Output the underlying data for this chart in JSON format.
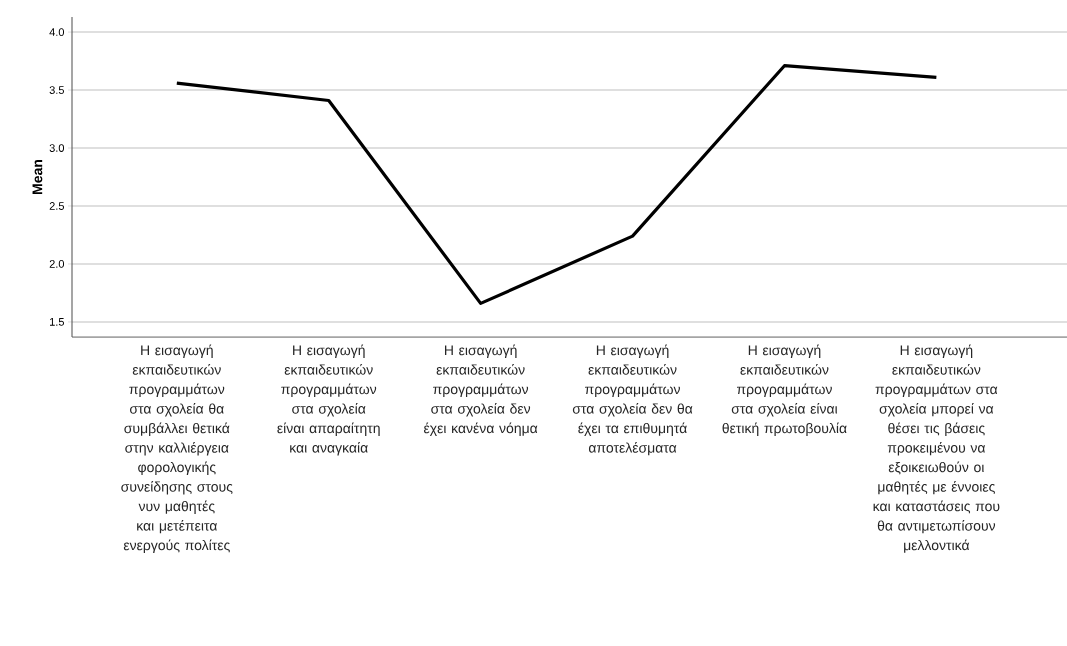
{
  "chart_data": {
    "type": "line",
    "ylabel": "Mean",
    "categories": [
      "Η εισαγωγή εκπαιδευτικών προγραμμάτων στα σχολεία θα συμβάλλει θετικά στην καλλιέργεια φορολογικής συνείδησης στους νυν μαθητές και μετέπειτα ενεργούς πολίτες",
      "Η εισαγωγή εκπαιδευτικών προγραμμάτων στα σχολεία είναι απαραίτητη και αναγκαία",
      "Η εισαγωγή εκπαιδευτικών προγραμμάτων στα σχολεία δεν έχει κανένα νόημα",
      "Η εισαγωγή εκπαιδευτικών προγραμμάτων στα σχολεία δεν θα έχει τα επιθυμητά αποτελέσματα",
      "Η εισαγωγή εκπαιδευτικών προγραμμάτων στα σχολεία είναι θετική πρωτοβουλία",
      "Η εισαγωγή εκπαιδευτικών προγραμμάτων στα σχολεία μπορεί να θέσει τις βάσεις προκειμένου να εξοικειωθούν οι μαθητές με έννοιες και καταστάσεις που θα αντιμετωπίσουν μελλοντικά"
    ],
    "values": [
      3.56,
      3.41,
      1.66,
      2.24,
      3.71,
      3.61
    ],
    "color": "#000000",
    "ylim": [
      1.37,
      4.13
    ],
    "yticks": [
      1.5,
      {
        "value": 2,
        "label": "2.0"
      },
      2.5,
      {
        "value": 3,
        "label": "3.0"
      },
      3.5,
      {
        "value": 4,
        "label": "4.0"
      }
    ],
    "grid": "y",
    "line_style": "solid"
  }
}
